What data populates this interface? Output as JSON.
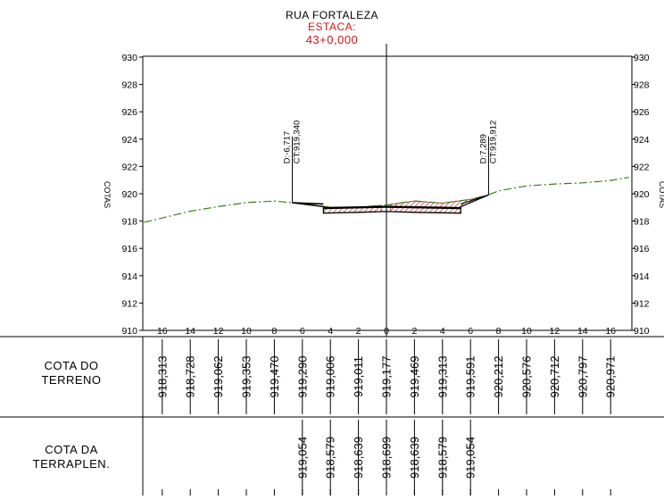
{
  "header": {
    "street": "RUA FORTALEZA",
    "estaca_label": "ESTACA:",
    "estaca_value": "43+0,000"
  },
  "axes": {
    "y_title": "COTAS",
    "y_ticks": [
      "930",
      "928",
      "926",
      "924",
      "922",
      "920",
      "918",
      "916",
      "914",
      "912",
      "910"
    ],
    "x_ticks": [
      "16",
      "14",
      "12",
      "10",
      "8",
      "6",
      "4",
      "2",
      "0",
      "2",
      "4",
      "6",
      "8",
      "10",
      "12",
      "14",
      "16"
    ],
    "y_range": [
      910,
      930
    ],
    "x_range": [
      -17,
      17
    ]
  },
  "markers": [
    {
      "d": "D:-6,717",
      "ct": "CT:919,340",
      "offset": -6.717,
      "elev": 919.34
    },
    {
      "d": "D:7,289",
      "ct": "CT:919,912",
      "offset": 7.289,
      "elev": 919.912
    }
  ],
  "table": {
    "row1_label": [
      "COTA DO",
      "TERRENO"
    ],
    "row2_label": [
      "COTA DA",
      "TERRAPLEN."
    ],
    "terreno": [
      {
        "x": -16,
        "v": "918,313"
      },
      {
        "x": -14,
        "v": "918,728"
      },
      {
        "x": -12,
        "v": "919,062"
      },
      {
        "x": -10,
        "v": "919,353"
      },
      {
        "x": -8,
        "v": "919,470"
      },
      {
        "x": -6,
        "v": "919,290"
      },
      {
        "x": -4,
        "v": "919,006"
      },
      {
        "x": -2,
        "v": "919,011"
      },
      {
        "x": 0,
        "v": "919,177"
      },
      {
        "x": 2,
        "v": "919,469"
      },
      {
        "x": 4,
        "v": "919,313"
      },
      {
        "x": 6,
        "v": "919,591"
      },
      {
        "x": 8,
        "v": "920,212"
      },
      {
        "x": 10,
        "v": "920,576"
      },
      {
        "x": 12,
        "v": "920,712"
      },
      {
        "x": 14,
        "v": "920,797"
      },
      {
        "x": 16,
        "v": "920,971"
      }
    ],
    "terraplen": [
      {
        "x": -6,
        "v": "919,054"
      },
      {
        "x": -4,
        "v": "918,579"
      },
      {
        "x": -2,
        "v": "918,639"
      },
      {
        "x": 0,
        "v": "918,699"
      },
      {
        "x": 2,
        "v": "918,639"
      },
      {
        "x": 4,
        "v": "918,579"
      },
      {
        "x": 6,
        "v": "919,054"
      }
    ]
  },
  "terrain_profile": [
    [
      -17.3,
      917.9
    ],
    [
      -14,
      918.728
    ],
    [
      -12,
      919.062
    ],
    [
      -10,
      919.353
    ],
    [
      -8,
      919.47
    ],
    [
      -6.717,
      919.34
    ],
    [
      -6,
      919.29
    ],
    [
      -4,
      919.006
    ],
    [
      -2,
      919.011
    ],
    [
      0,
      919.177
    ],
    [
      2,
      919.469
    ],
    [
      4,
      919.313
    ],
    [
      6,
      919.591
    ],
    [
      7.289,
      919.912
    ],
    [
      8,
      920.212
    ],
    [
      10,
      920.576
    ],
    [
      12,
      920.712
    ],
    [
      14,
      920.797
    ],
    [
      16,
      920.971
    ],
    [
      17.3,
      921.2
    ]
  ],
  "platform_profile": [
    [
      -6.717,
      919.34
    ],
    [
      -4.5,
      919.054
    ],
    [
      -4.5,
      918.579
    ],
    [
      -2,
      918.639
    ],
    [
      0,
      918.699
    ],
    [
      2,
      918.639
    ],
    [
      5.3,
      918.579
    ],
    [
      5.3,
      919.054
    ],
    [
      7.289,
      919.912
    ]
  ],
  "colors": {
    "terrain": "#3a7d1e",
    "estaca": "#e01010",
    "hatch": "#cc1f1f",
    "road": "#000000",
    "frame": "#000000"
  }
}
